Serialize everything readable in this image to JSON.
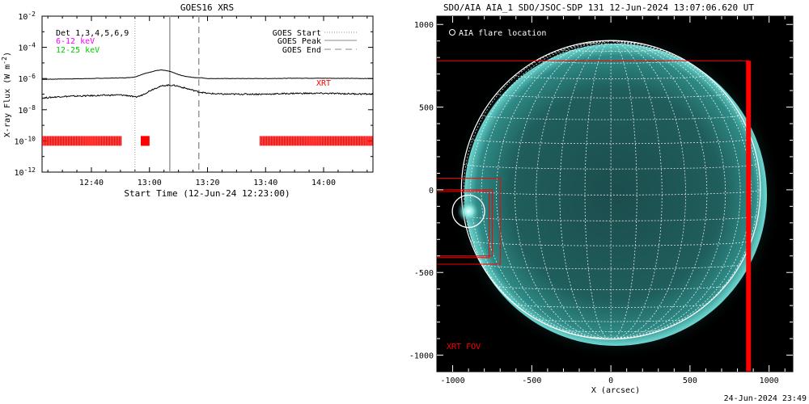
{
  "chart_data": [
    {
      "type": "line",
      "title": "GOES16 XRS",
      "xlabel": "Start Time (12-Jun-24 12:23:00)",
      "ylabel": "X-ray Flux (W m",
      "ylabel_sup": "-2",
      "ylabel_end": ")",
      "ylog": true,
      "ylim": [
        1e-12,
        0.01
      ],
      "xlim_minutes_from_12_00": [
        23,
        137
      ],
      "x_ticks": [
        "12:40",
        "13:00",
        "13:20",
        "13:40",
        "14:00"
      ],
      "x_tick_minutes": [
        40,
        60,
        80,
        100,
        120
      ],
      "y_ticks": [
        {
          "base": "10",
          "exp": "-2",
          "value_log": -2
        },
        {
          "base": "10",
          "exp": "-4",
          "value_log": -4
        },
        {
          "base": "10",
          "exp": "-6",
          "value_log": -6
        },
        {
          "base": "10",
          "exp": "-8",
          "value_log": -8
        },
        {
          "base": "10",
          "exp": "-10",
          "value_log": -10
        },
        {
          "base": "10",
          "exp": "-12",
          "value_log": -12
        }
      ],
      "detector_label": "Det 1,3,4,5,6,9",
      "band_labels": [
        {
          "text": "6-12 keV",
          "color": "#ff00ff"
        },
        {
          "text": "12-25 keV",
          "color": "#00cc00"
        }
      ],
      "legend": [
        {
          "text": "GOES Start",
          "style": "dotted"
        },
        {
          "text": "GOES Peak",
          "style": "solid"
        },
        {
          "text": "GOES End",
          "style": "dashed"
        }
      ],
      "legend_position": "top-right",
      "event_markers": {
        "start": "12:55",
        "peak": "13:07",
        "end": "13:17"
      },
      "series": [
        {
          "name": "",
          "color": "#000000",
          "log_x_minutes": [
            23,
            40,
            52,
            55,
            58,
            60,
            62,
            64,
            66,
            68,
            70,
            72,
            74,
            76,
            78,
            80,
            84,
            90,
            100,
            110,
            120,
            137
          ],
          "log_values": [
            -6.05,
            -6.0,
            -5.95,
            -5.9,
            -5.7,
            -5.6,
            -5.5,
            -5.45,
            -5.5,
            -5.6,
            -5.75,
            -5.85,
            -5.9,
            -5.95,
            -5.95,
            -6.0,
            -6.0,
            -6.0,
            -6.0,
            -5.98,
            -5.98,
            -6.0
          ]
        },
        {
          "name": "",
          "color": "#000000",
          "log_x_minutes": [
            23,
            30,
            40,
            50,
            53,
            55,
            57,
            59,
            61,
            63,
            65,
            67,
            69,
            71,
            73,
            75,
            77,
            80,
            85,
            90,
            100,
            110,
            120,
            137
          ],
          "log_values": [
            -7.25,
            -7.15,
            -7.1,
            -7.05,
            -7.1,
            -7.2,
            -7.1,
            -6.9,
            -6.7,
            -6.55,
            -6.45,
            -6.42,
            -6.45,
            -6.55,
            -6.65,
            -6.75,
            -6.85,
            -6.95,
            -7.0,
            -7.0,
            -7.0,
            -6.95,
            -6.95,
            -7.0
          ]
        }
      ],
      "xrt_label": "XRT",
      "xrt_coverage_minutes": [
        [
          23,
          50
        ],
        [
          57,
          59.5
        ],
        [
          98,
          137
        ]
      ],
      "xrt_color": "#ff0000"
    },
    {
      "type": "heatmap",
      "title": "SDO/AIA AIA_1 SDO/JSOC-SDP 131 12-Jun-2024 13:07:06.620 UT",
      "xlabel": "X (arcsec)",
      "ylabel": "",
      "xlim": [
        -1100,
        1150
      ],
      "ylim": [
        -1100,
        1050
      ],
      "x_ticks": [
        "-1000",
        "-500",
        "0",
        "500",
        "1000"
      ],
      "x_tick_values": [
        -1000,
        -500,
        0,
        500,
        1000
      ],
      "y_ticks": [
        "1000",
        "500",
        "0",
        "-500",
        "-1000"
      ],
      "y_tick_values": [
        1000,
        500,
        0,
        -500,
        -1000
      ],
      "solar_radius_arcsec": 945,
      "flare_legend": "AIA flare location",
      "flare_location_arcsec": [
        -900,
        -130
      ],
      "xrt_fov_label": "XRT FOV",
      "xrt_fov_color": "#ff0000",
      "xrt_fov_box_arcsec": [
        -1100,
        -1100,
        870,
        780
      ],
      "xrt_small_boxes_arcsec": [
        [
          -1100,
          -450,
          -700,
          70
        ],
        [
          -1100,
          -400,
          -750,
          0
        ],
        [
          -1100,
          -410,
          -770,
          -10
        ]
      ],
      "disk_color": "#2a8a86",
      "timestamp": "24-Jun-2024 23:49"
    }
  ]
}
